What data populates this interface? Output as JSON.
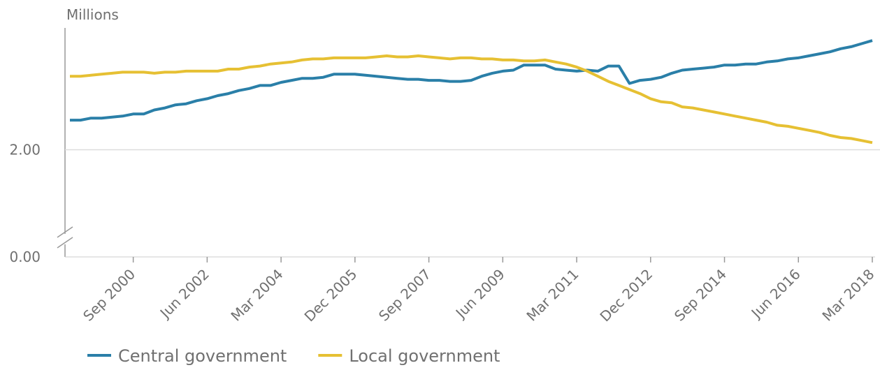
{
  "chart_data": {
    "type": "line",
    "y_axis_label": "Millions",
    "categories": [
      null,
      null,
      null,
      null,
      null,
      null,
      "Sep 2000",
      null,
      null,
      null,
      null,
      null,
      null,
      "Jun 2002",
      null,
      null,
      null,
      null,
      null,
      null,
      "Mar 2004",
      null,
      null,
      null,
      null,
      null,
      null,
      "Dec 2005",
      null,
      null,
      null,
      null,
      null,
      null,
      "Sep 2007",
      null,
      null,
      null,
      null,
      null,
      null,
      "Jun 2009",
      null,
      null,
      null,
      null,
      null,
      null,
      "Mar 2011",
      null,
      null,
      null,
      null,
      null,
      null,
      "Dec 2012",
      null,
      null,
      null,
      null,
      null,
      null,
      "Sep 2014",
      null,
      null,
      null,
      null,
      null,
      null,
      "Jun 2016",
      null,
      null,
      null,
      null,
      null,
      null,
      "Mar 2018"
    ],
    "series": [
      {
        "name": "Central government",
        "color": "#2a7fa8",
        "values": [
          2.29,
          2.29,
          2.31,
          2.31,
          2.32,
          2.33,
          2.35,
          2.35,
          2.39,
          2.41,
          2.44,
          2.45,
          2.48,
          2.5,
          2.53,
          2.55,
          2.58,
          2.6,
          2.63,
          2.63,
          2.66,
          2.68,
          2.7,
          2.7,
          2.71,
          2.74,
          2.74,
          2.74,
          2.73,
          2.72,
          2.71,
          2.7,
          2.69,
          2.69,
          2.68,
          2.68,
          2.67,
          2.67,
          2.68,
          2.72,
          2.75,
          2.77,
          2.78,
          2.83,
          2.83,
          2.83,
          2.79,
          2.78,
          2.77,
          2.78,
          2.77,
          2.82,
          2.82,
          2.65,
          2.68,
          2.69,
          2.71,
          2.75,
          2.78,
          2.79,
          2.8,
          2.81,
          2.83,
          2.83,
          2.84,
          2.84,
          2.86,
          2.87,
          2.89,
          2.9,
          2.92,
          2.94,
          2.96,
          2.99,
          3.01,
          3.04,
          3.07
        ]
      },
      {
        "name": "Local government",
        "color": "#e6c033",
        "values": [
          2.72,
          2.72,
          2.73,
          2.74,
          2.75,
          2.76,
          2.76,
          2.76,
          2.75,
          2.76,
          2.76,
          2.77,
          2.77,
          2.77,
          2.77,
          2.79,
          2.79,
          2.81,
          2.82,
          2.84,
          2.85,
          2.86,
          2.88,
          2.89,
          2.89,
          2.9,
          2.9,
          2.9,
          2.9,
          2.91,
          2.92,
          2.91,
          2.91,
          2.92,
          2.91,
          2.9,
          2.89,
          2.9,
          2.9,
          2.89,
          2.89,
          2.88,
          2.88,
          2.87,
          2.87,
          2.88,
          2.86,
          2.84,
          2.81,
          2.77,
          2.72,
          2.67,
          2.63,
          2.59,
          2.55,
          2.5,
          2.47,
          2.46,
          2.42,
          2.41,
          2.39,
          2.37,
          2.35,
          2.33,
          2.31,
          2.29,
          2.27,
          2.24,
          2.23,
          2.21,
          2.19,
          2.17,
          2.14,
          2.12,
          2.11,
          2.09,
          2.07
        ]
      }
    ],
    "ylim": [
      0,
      3.18
    ],
    "axis_break": [
      0,
      0.95
    ],
    "yticks": [
      {
        "value": 0,
        "label": "0.00"
      },
      {
        "value": 2,
        "label": "2.00"
      }
    ],
    "grid": true,
    "legend": "bottom"
  }
}
